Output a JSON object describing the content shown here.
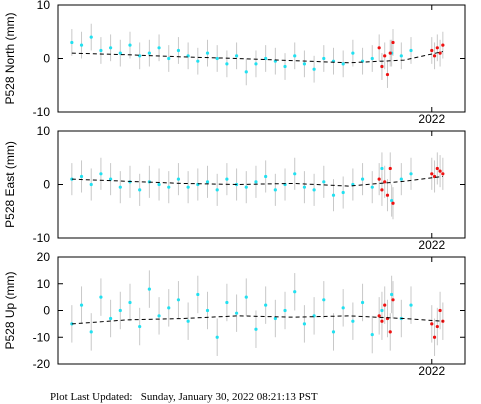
{
  "chart_data": [
    {
      "type": "scatter",
      "ylabel": "P528 North (mm)",
      "xlim": [
        2019.3,
        2022.24
      ],
      "xticks": [
        2022
      ],
      "ylim": [
        -10,
        10
      ],
      "yticks": [
        -10,
        0,
        10
      ],
      "series": [
        {
          "color": "#22e0f0",
          "error": 2.5,
          "x": [
            2019.4,
            2019.47,
            2019.54,
            2019.61,
            2019.68,
            2019.75,
            2019.82,
            2019.89,
            2019.96,
            2020.03,
            2020.1,
            2020.17,
            2020.24,
            2020.31,
            2020.38,
            2020.45,
            2020.52,
            2020.59,
            2020.66,
            2020.73,
            2020.8,
            2020.87,
            2020.94,
            2021.01,
            2021.08,
            2021.15,
            2021.22,
            2021.29,
            2021.36,
            2021.43,
            2021.5,
            2021.57,
            2021.64,
            2021.71,
            2021.78,
            2021.85
          ],
          "values": [
            3,
            2.5,
            4,
            1.5,
            2,
            1,
            2.5,
            0.5,
            1,
            2,
            0,
            1.5,
            0.5,
            -0.5,
            1,
            0,
            -1,
            0.5,
            -2.5,
            -1,
            0,
            -0.5,
            -1.5,
            0.5,
            -1,
            -2,
            0,
            -0.5,
            -1,
            1,
            -0.5,
            0,
            -1.5,
            1,
            0.5,
            1.5
          ]
        },
        {
          "color": "#ee1111",
          "error": 2.5,
          "x": [
            2021.62,
            2021.64,
            2021.66,
            2021.68,
            2021.7,
            2021.72,
            2022.0,
            2022.02,
            2022.04,
            2022.06,
            2022.08
          ],
          "values": [
            2,
            -1.5,
            0.5,
            -3,
            1,
            3,
            1.5,
            0.5,
            2,
            1,
            2.5
          ]
        }
      ],
      "trend": {
        "x": [
          2019.4,
          2019.8,
          2020.2,
          2020.6,
          2021.0,
          2021.4,
          2021.8,
          2022.08
        ],
        "values": [
          1,
          0.7,
          0.3,
          0,
          -0.4,
          -0.8,
          -0.3,
          1.3
        ]
      }
    },
    {
      "type": "scatter",
      "ylabel": "P528 East (mm)",
      "xlim": [
        2019.3,
        2022.24
      ],
      "xticks": [
        2022
      ],
      "ylim": [
        -10,
        10
      ],
      "yticks": [
        -10,
        0,
        10
      ],
      "series": [
        {
          "color": "#22e0f0",
          "error": 3,
          "x": [
            2019.4,
            2019.47,
            2019.54,
            2019.61,
            2019.68,
            2019.75,
            2019.82,
            2019.89,
            2019.96,
            2020.03,
            2020.1,
            2020.17,
            2020.24,
            2020.31,
            2020.38,
            2020.45,
            2020.52,
            2020.59,
            2020.66,
            2020.73,
            2020.8,
            2020.87,
            2020.94,
            2021.01,
            2021.08,
            2021.15,
            2021.22,
            2021.29,
            2021.36,
            2021.43,
            2021.5,
            2021.57,
            2021.64,
            2021.71,
            2021.78,
            2021.85
          ],
          "values": [
            1,
            1.5,
            0,
            2,
            1,
            -0.5,
            0.5,
            -1,
            0.5,
            0,
            -0.5,
            1,
            -0.5,
            0,
            0.5,
            -1,
            1,
            0,
            -0.5,
            0.5,
            1.5,
            -1,
            0,
            2,
            -0.5,
            -1,
            0.5,
            -2,
            -1.5,
            0,
            1,
            -0.5,
            3,
            -3,
            1,
            2
          ]
        },
        {
          "color": "#ee1111",
          "error": 3,
          "x": [
            2021.62,
            2021.64,
            2021.66,
            2021.68,
            2021.7,
            2021.72,
            2022.0,
            2022.02,
            2022.04,
            2022.06,
            2022.08
          ],
          "values": [
            1,
            -1,
            0.5,
            -2,
            3,
            -3.5,
            2,
            1.5,
            3,
            2.5,
            2
          ]
        }
      ],
      "trend": {
        "x": [
          2019.4,
          2019.8,
          2020.2,
          2020.6,
          2021.0,
          2021.4,
          2021.8,
          2022.08
        ],
        "values": [
          1,
          0.6,
          0.2,
          0,
          0.2,
          -0.3,
          0.6,
          1.5
        ]
      }
    },
    {
      "type": "scatter",
      "ylabel": "P528 Up (mm)",
      "xlim": [
        2019.3,
        2022.24
      ],
      "xticks": [
        2022
      ],
      "ylim": [
        -20,
        20
      ],
      "yticks": [
        -20,
        -10,
        0,
        10,
        20
      ],
      "series": [
        {
          "color": "#22e0f0",
          "error": 7,
          "x": [
            2019.4,
            2019.47,
            2019.54,
            2019.61,
            2019.68,
            2019.75,
            2019.82,
            2019.89,
            2019.96,
            2020.03,
            2020.1,
            2020.17,
            2020.24,
            2020.31,
            2020.38,
            2020.45,
            2020.52,
            2020.59,
            2020.66,
            2020.73,
            2020.8,
            2020.87,
            2020.94,
            2021.01,
            2021.08,
            2021.15,
            2021.22,
            2021.29,
            2021.36,
            2021.43,
            2021.5,
            2021.57,
            2021.64,
            2021.71,
            2021.78,
            2021.85
          ],
          "values": [
            -5,
            2,
            -8,
            5,
            -3,
            0,
            3,
            -6,
            8,
            -2,
            1,
            4,
            -4,
            6,
            0,
            -10,
            3,
            -1,
            5,
            -7,
            2,
            -3,
            0,
            7,
            -5,
            -2,
            4,
            -8,
            1,
            -4,
            3,
            -9,
            0,
            6,
            -3,
            2
          ]
        },
        {
          "color": "#ee1111",
          "error": 7,
          "x": [
            2021.62,
            2021.64,
            2021.66,
            2021.68,
            2021.7,
            2021.72,
            2022.0,
            2022.02,
            2022.04,
            2022.06,
            2022.08
          ],
          "values": [
            -2,
            -4,
            2,
            -3,
            -8,
            4,
            -5,
            -10,
            -6,
            0,
            -4
          ]
        }
      ],
      "trend": {
        "x": [
          2019.4,
          2019.8,
          2020.2,
          2020.6,
          2021.0,
          2021.4,
          2021.8,
          2022.08
        ],
        "values": [
          -5,
          -3.5,
          -3,
          -2,
          -2.5,
          -2,
          -3,
          -4
        ]
      }
    }
  ],
  "footer": "Plot Last Updated:   Sunday, January 30, 2022 08:21:13 PST"
}
